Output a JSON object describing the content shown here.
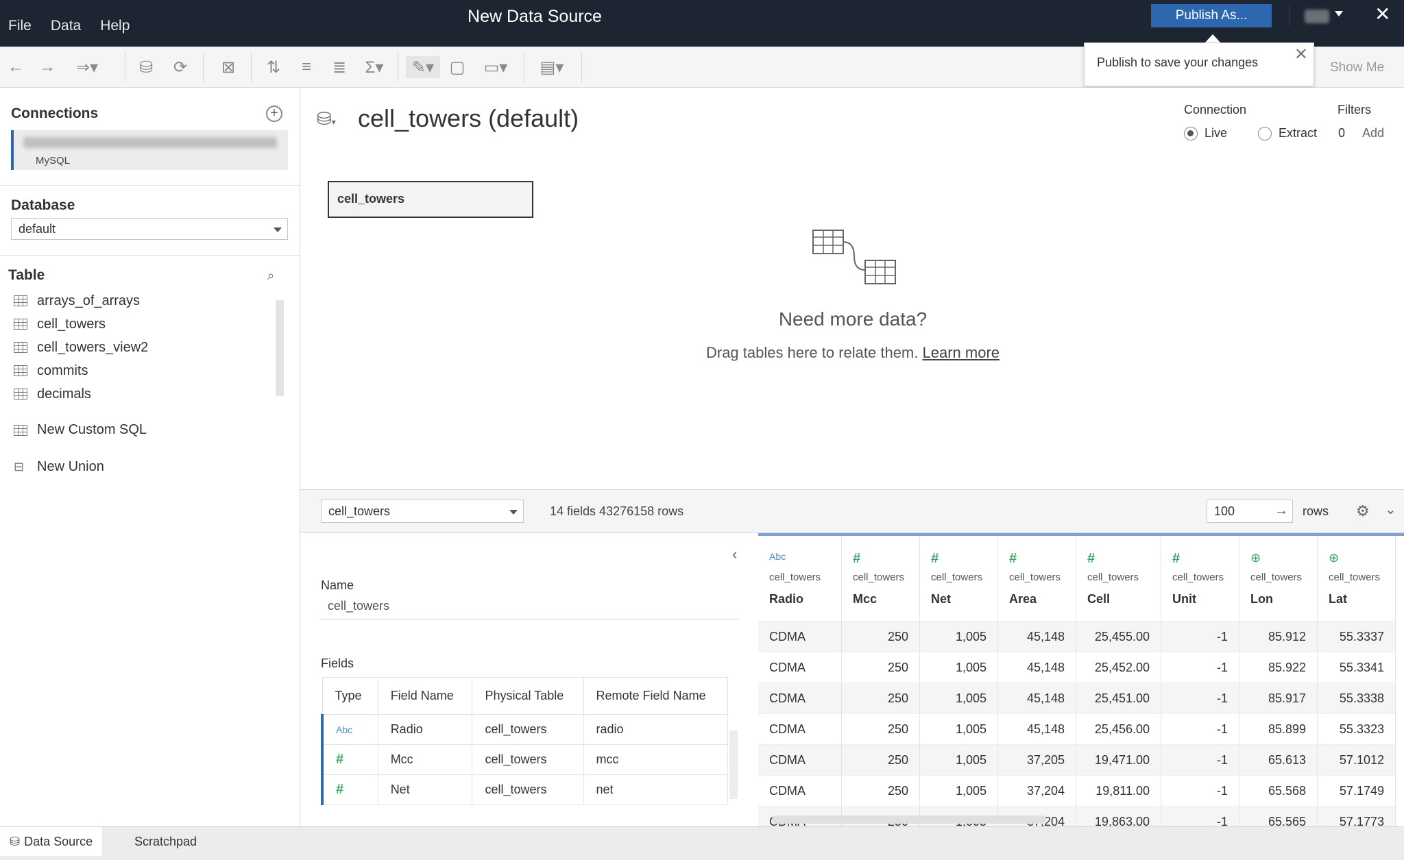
{
  "menu": [
    "File",
    "Data",
    "Help"
  ],
  "window_title": "New Data Source",
  "publish_button": "Publish As...",
  "tooltip": "Publish to save your changes",
  "show_me": "Show Me",
  "left": {
    "connections_heading": "Connections",
    "connection_type": "MySQL",
    "database_heading": "Database",
    "database_value": "default",
    "table_heading": "Table",
    "tables": [
      "arrays_of_arrays",
      "cell_towers",
      "cell_towers_view2",
      "commits",
      "decimals"
    ],
    "custom_sql": "New Custom SQL",
    "new_union": "New Union"
  },
  "canvas": {
    "title": "cell_towers (default)",
    "connection_label": "Connection",
    "live_label": "Live",
    "extract_label": "Extract",
    "filters_label": "Filters",
    "filters_count": "0",
    "filters_add": "Add",
    "table_chip": "cell_towers",
    "need_more": "Need more data?",
    "drag_hint": "Drag tables here to relate them.",
    "learn_more": "Learn more"
  },
  "strip": {
    "table_select": "cell_towers",
    "field_count": "14 fields 43276158 rows",
    "rows_value": "100",
    "rows_label": "rows"
  },
  "meta": {
    "name_label": "Name",
    "name_value": "cell_towers",
    "fields_label": "Fields",
    "headers": [
      "Type",
      "Field Name",
      "Physical Table",
      "Remote Field Name"
    ],
    "rows": [
      {
        "type": "Abc",
        "name": "Radio",
        "table": "cell_towers",
        "remote": "radio"
      },
      {
        "type": "#",
        "name": "Mcc",
        "table": "cell_towers",
        "remote": "mcc"
      },
      {
        "type": "#",
        "name": "Net",
        "table": "cell_towers",
        "remote": "net"
      }
    ]
  },
  "grid": {
    "columns": [
      {
        "type": "Abc",
        "source": "cell_towers",
        "name": "Radio",
        "values": [
          "CDMA",
          "CDMA",
          "CDMA",
          "CDMA",
          "CDMA",
          "CDMA",
          "CDMA"
        ]
      },
      {
        "type": "#",
        "source": "cell_towers",
        "name": "Mcc",
        "values": [
          "250",
          "250",
          "250",
          "250",
          "250",
          "250",
          "250"
        ]
      },
      {
        "type": "#",
        "source": "cell_towers",
        "name": "Net",
        "values": [
          "1,005",
          "1,005",
          "1,005",
          "1,005",
          "1,005",
          "1,005",
          "1,005"
        ]
      },
      {
        "type": "#",
        "source": "cell_towers",
        "name": "Area",
        "values": [
          "45,148",
          "45,148",
          "45,148",
          "45,148",
          "37,205",
          "37,204",
          "37,204"
        ]
      },
      {
        "type": "#",
        "source": "cell_towers",
        "name": "Cell",
        "values": [
          "25,455.00",
          "25,452.00",
          "25,451.00",
          "25,456.00",
          "19,471.00",
          "19,811.00",
          "19,863.00"
        ]
      },
      {
        "type": "#",
        "source": "cell_towers",
        "name": "Unit",
        "values": [
          "-1",
          "-1",
          "-1",
          "-1",
          "-1",
          "-1",
          "-1"
        ]
      },
      {
        "type": "globe",
        "source": "cell_towers",
        "name": "Lon",
        "values": [
          "85.912",
          "85.922",
          "85.917",
          "85.899",
          "65.613",
          "65.568",
          "65.565"
        ]
      },
      {
        "type": "globe",
        "source": "cell_towers",
        "name": "Lat",
        "values": [
          "55.3337",
          "55.3341",
          "55.3338",
          "55.3323",
          "57.1012",
          "57.1749",
          "57.1773"
        ]
      }
    ]
  },
  "tabs": [
    "Data Source",
    "Scratchpad"
  ]
}
